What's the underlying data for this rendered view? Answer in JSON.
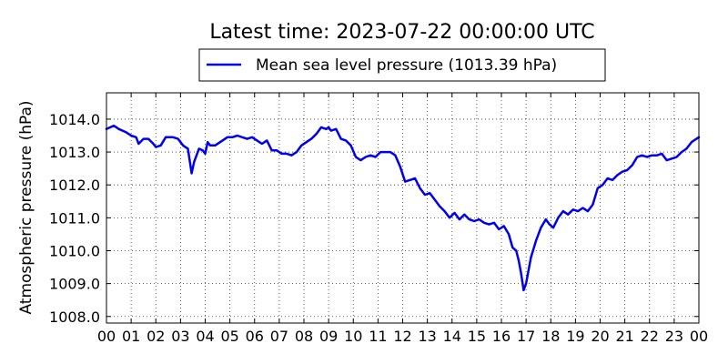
{
  "chart_data": {
    "type": "line",
    "title": "Latest time: 2023-07-22 00:00:00 UTC",
    "xlabel": "",
    "ylabel": "Atmospheric pressure (hPa)",
    "xlim": [
      0,
      24
    ],
    "ylim": [
      1007.8,
      1014.8
    ],
    "grid": true,
    "legend_position": "top-center",
    "line_color": "#0000ee",
    "x_tick_labels": [
      "00",
      "01",
      "02",
      "03",
      "04",
      "05",
      "06",
      "07",
      "08",
      "09",
      "10",
      "11",
      "12",
      "13",
      "14",
      "15",
      "16",
      "17",
      "18",
      "19",
      "20",
      "21",
      "22",
      "23",
      "00"
    ],
    "y_ticks": [
      1008.0,
      1009.0,
      1010.0,
      1011.0,
      1012.0,
      1013.0,
      1014.0
    ],
    "y_tick_labels": [
      "1008.0",
      "1009.0",
      "1010.0",
      "1011.0",
      "1012.0",
      "1013.0",
      "1014.0"
    ],
    "series": [
      {
        "name": "Mean sea level pressure (1013.39 hPa)",
        "x": [
          0,
          0.3,
          0.5,
          0.8,
          1.0,
          1.2,
          1.3,
          1.5,
          1.7,
          1.9,
          2.0,
          2.2,
          2.4,
          2.7,
          2.9,
          3.1,
          3.3,
          3.45,
          3.55,
          3.75,
          3.9,
          4.0,
          4.1,
          4.2,
          4.4,
          4.7,
          4.9,
          5.1,
          5.3,
          5.5,
          5.7,
          5.9,
          6.1,
          6.3,
          6.5,
          6.7,
          6.9,
          7.1,
          7.3,
          7.5,
          7.7,
          7.9,
          8.1,
          8.3,
          8.5,
          8.7,
          8.9,
          9.0,
          9.1,
          9.3,
          9.5,
          9.7,
          9.9,
          10.1,
          10.3,
          10.5,
          10.7,
          10.9,
          11.1,
          11.3,
          11.5,
          11.7,
          11.9,
          12.1,
          12.3,
          12.5,
          12.7,
          12.9,
          13.1,
          13.3,
          13.5,
          13.7,
          13.9,
          14.1,
          14.3,
          14.5,
          14.7,
          14.9,
          15.1,
          15.3,
          15.5,
          15.7,
          15.9,
          16.1,
          16.3,
          16.45,
          16.6,
          16.7,
          16.8,
          16.9,
          17.0,
          17.2,
          17.4,
          17.6,
          17.8,
          17.95,
          18.1,
          18.3,
          18.5,
          18.7,
          18.9,
          19.1,
          19.3,
          19.5,
          19.7,
          19.9,
          20.1,
          20.3,
          20.5,
          20.7,
          20.9,
          21.1,
          21.3,
          21.5,
          21.7,
          21.9,
          22.1,
          22.3,
          22.5,
          22.7,
          22.9,
          23.1,
          23.3,
          23.5,
          23.7,
          23.9,
          24.0
        ],
        "values": [
          1013.7,
          1013.8,
          1013.7,
          1013.6,
          1013.5,
          1013.45,
          1013.25,
          1013.4,
          1013.4,
          1013.25,
          1013.15,
          1013.2,
          1013.45,
          1013.45,
          1013.4,
          1013.2,
          1013.1,
          1012.35,
          1012.7,
          1013.1,
          1013.05,
          1012.95,
          1013.3,
          1013.2,
          1013.2,
          1013.35,
          1013.45,
          1013.45,
          1013.5,
          1013.45,
          1013.4,
          1013.45,
          1013.35,
          1013.25,
          1013.35,
          1013.05,
          1013.05,
          1012.95,
          1012.95,
          1012.9,
          1013.0,
          1013.2,
          1013.3,
          1013.4,
          1013.55,
          1013.75,
          1013.7,
          1013.75,
          1013.65,
          1013.7,
          1013.4,
          1013.35,
          1013.2,
          1012.85,
          1012.75,
          1012.85,
          1012.9,
          1012.85,
          1013.0,
          1013.0,
          1013.0,
          1012.9,
          1012.55,
          1012.1,
          1012.15,
          1012.2,
          1011.9,
          1011.7,
          1011.75,
          1011.55,
          1011.35,
          1011.2,
          1011.0,
          1011.15,
          1010.95,
          1011.1,
          1010.95,
          1010.9,
          1010.95,
          1010.85,
          1010.8,
          1010.85,
          1010.65,
          1010.75,
          1010.5,
          1010.1,
          1010.0,
          1009.7,
          1009.3,
          1008.8,
          1009.0,
          1009.8,
          1010.3,
          1010.7,
          1010.95,
          1010.8,
          1010.7,
          1011.0,
          1011.2,
          1011.1,
          1011.25,
          1011.2,
          1011.3,
          1011.2,
          1011.4,
          1011.9,
          1012.0,
          1012.2,
          1012.15,
          1012.3,
          1012.4,
          1012.45,
          1012.6,
          1012.85,
          1012.9,
          1012.85,
          1012.9,
          1012.9,
          1012.95,
          1012.75,
          1012.8,
          1012.85,
          1013.0,
          1013.1,
          1013.3,
          1013.4,
          1013.45
        ]
      }
    ]
  }
}
